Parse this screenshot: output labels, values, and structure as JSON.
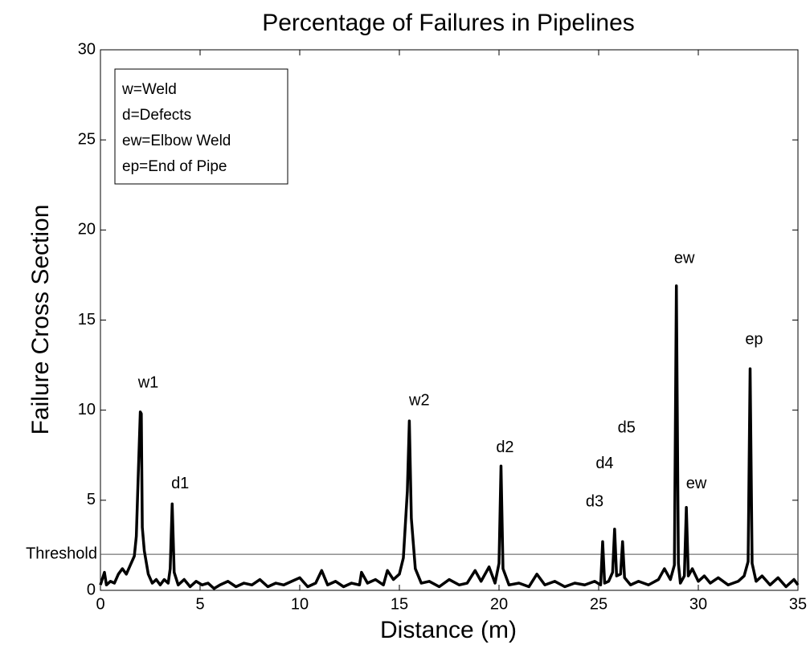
{
  "chart_data": {
    "type": "line",
    "title": "Percentage of Failures in Pipelines",
    "x_label": "Distance (m)",
    "y_label": "Failure Cross Section",
    "xlim": [
      0,
      35
    ],
    "xticks": [
      0,
      5,
      10,
      15,
      20,
      25,
      30,
      35
    ],
    "ylim": [
      0,
      30
    ],
    "yticks": [
      0,
      5,
      10,
      15,
      20,
      25,
      30
    ],
    "grid": false,
    "color": "#000000",
    "threshold": {
      "value": 2,
      "label": "Threshold"
    },
    "legend_notes": [
      "w=Weld",
      "d=Defects",
      "ew=Elbow Weld",
      "ep=End of Pipe"
    ],
    "annotations": [
      {
        "text": "w1",
        "x": 2.4,
        "y": 11.5
      },
      {
        "text": "d1",
        "x": 4.0,
        "y": 5.9
      },
      {
        "text": "w2",
        "x": 16.0,
        "y": 10.5
      },
      {
        "text": "d2",
        "x": 20.3,
        "y": 7.9
      },
      {
        "text": "d3",
        "x": 24.8,
        "y": 4.9
      },
      {
        "text": "d4",
        "x": 25.3,
        "y": 7.0
      },
      {
        "text": "d5",
        "x": 26.4,
        "y": 9.0
      },
      {
        "text": "ew",
        "x": 29.3,
        "y": 18.4
      },
      {
        "text": "ew",
        "x": 29.9,
        "y": 5.9
      },
      {
        "text": "ep",
        "x": 32.8,
        "y": 13.9
      }
    ],
    "x": [
      0,
      0.2,
      0.3,
      0.5,
      0.7,
      0.9,
      1.1,
      1.3,
      1.5,
      1.7,
      1.8,
      1.9,
      2.0,
      2.05,
      2.1,
      2.2,
      2.4,
      2.6,
      2.8,
      3.0,
      3.2,
      3.4,
      3.5,
      3.6,
      3.7,
      3.9,
      4.2,
      4.5,
      4.8,
      5.1,
      5.4,
      5.7,
      6.0,
      6.4,
      6.8,
      7.2,
      7.6,
      8.0,
      8.4,
      8.8,
      9.2,
      9.6,
      10.0,
      10.4,
      10.8,
      11.1,
      11.4,
      11.8,
      12.2,
      12.6,
      13.0,
      13.1,
      13.4,
      13.8,
      14.2,
      14.4,
      14.7,
      15.0,
      15.2,
      15.4,
      15.5,
      15.6,
      15.8,
      16.1,
      16.5,
      17.0,
      17.5,
      18.0,
      18.4,
      18.8,
      19.1,
      19.5,
      19.8,
      20.0,
      20.1,
      20.2,
      20.5,
      21.0,
      21.5,
      21.9,
      22.3,
      22.8,
      23.3,
      23.8,
      24.3,
      24.8,
      25.1,
      25.2,
      25.3,
      25.5,
      25.7,
      25.8,
      25.9,
      26.1,
      26.2,
      26.3,
      26.6,
      27.0,
      27.5,
      28.0,
      28.3,
      28.6,
      28.8,
      28.9,
      29.0,
      29.1,
      29.3,
      29.4,
      29.5,
      29.7,
      30.0,
      30.3,
      30.6,
      31.0,
      31.5,
      32.0,
      32.3,
      32.5,
      32.6,
      32.7,
      32.9,
      33.2,
      33.6,
      34.0,
      34.4,
      34.8,
      35.0
    ],
    "values": [
      0.3,
      1.0,
      0.3,
      0.5,
      0.4,
      0.9,
      1.2,
      0.9,
      1.4,
      1.9,
      3.0,
      6.5,
      9.9,
      9.8,
      3.5,
      2.2,
      0.9,
      0.4,
      0.6,
      0.3,
      0.6,
      0.4,
      1.2,
      4.8,
      1.0,
      0.3,
      0.6,
      0.2,
      0.5,
      0.3,
      0.4,
      0.1,
      0.3,
      0.5,
      0.2,
      0.4,
      0.3,
      0.6,
      0.2,
      0.4,
      0.3,
      0.5,
      0.7,
      0.2,
      0.4,
      1.1,
      0.3,
      0.5,
      0.2,
      0.4,
      0.3,
      1.0,
      0.4,
      0.6,
      0.3,
      1.1,
      0.6,
      0.9,
      1.8,
      5.5,
      9.4,
      4.0,
      1.2,
      0.4,
      0.5,
      0.2,
      0.6,
      0.3,
      0.4,
      1.1,
      0.5,
      1.3,
      0.4,
      1.5,
      6.9,
      1.2,
      0.3,
      0.4,
      0.2,
      0.9,
      0.3,
      0.5,
      0.2,
      0.4,
      0.3,
      0.5,
      0.3,
      2.7,
      0.4,
      0.5,
      1.0,
      3.4,
      0.8,
      0.9,
      2.7,
      0.7,
      0.3,
      0.5,
      0.3,
      0.6,
      1.2,
      0.6,
      1.4,
      16.9,
      1.5,
      0.4,
      0.8,
      4.6,
      0.8,
      1.2,
      0.5,
      0.8,
      0.4,
      0.7,
      0.3,
      0.5,
      0.8,
      1.6,
      12.3,
      1.5,
      0.5,
      0.8,
      0.3,
      0.7,
      0.2,
      0.6,
      0.3
    ]
  }
}
